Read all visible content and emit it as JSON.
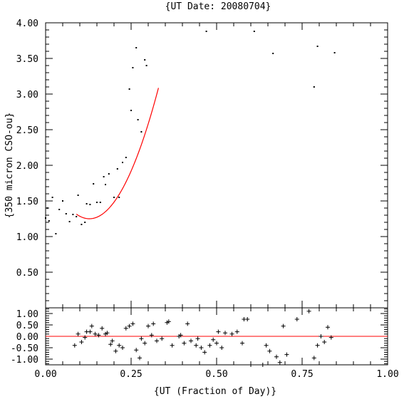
{
  "chart_data": [
    {
      "type": "scatter",
      "title": "{UT Date: 20080704}",
      "xlabel": "",
      "ylabel": "{350 micron CSO-ou}",
      "xlim": [
        0.0,
        1.0
      ],
      "ylim": [
        0.0,
        4.0
      ],
      "xticks": [
        "0.00",
        "0.25",
        "0.50",
        "0.75",
        "1.00"
      ],
      "yticks": [
        "0.50",
        "1.00",
        "1.50",
        "2.00",
        "2.50",
        "3.00",
        "3.50",
        "4.00"
      ],
      "series": [
        {
          "kind": "points",
          "color": "#000000",
          "points": [
            [
              0.0,
              1.26
            ],
            [
              0.005,
              1.4
            ],
            [
              0.01,
              1.22
            ],
            [
              0.02,
              1.55
            ],
            [
              0.03,
              1.04
            ],
            [
              0.04,
              1.38
            ],
            [
              0.05,
              1.5
            ],
            [
              0.06,
              1.32
            ],
            [
              0.07,
              1.21
            ],
            [
              0.08,
              1.31
            ],
            [
              0.09,
              1.28
            ],
            [
              0.095,
              1.58
            ],
            [
              0.105,
              1.17
            ],
            [
              0.115,
              1.2
            ],
            [
              0.12,
              1.46
            ],
            [
              0.13,
              1.45
            ],
            [
              0.14,
              1.74
            ],
            [
              0.15,
              1.48
            ],
            [
              0.16,
              1.48
            ],
            [
              0.17,
              1.84
            ],
            [
              0.175,
              1.73
            ],
            [
              0.185,
              1.88
            ],
            [
              0.2,
              1.55
            ],
            [
              0.21,
              1.95
            ],
            [
              0.215,
              1.55
            ],
            [
              0.225,
              2.04
            ],
            [
              0.235,
              2.11
            ],
            [
              0.245,
              3.07
            ],
            [
              0.25,
              2.77
            ],
            [
              0.255,
              3.37
            ],
            [
              0.265,
              3.65
            ],
            [
              0.27,
              2.64
            ],
            [
              0.28,
              2.47
            ],
            [
              0.29,
              3.48
            ],
            [
              0.295,
              3.4
            ],
            [
              0.47,
              3.88
            ],
            [
              0.61,
              3.88
            ],
            [
              0.665,
              3.57
            ],
            [
              0.785,
              3.1
            ],
            [
              0.795,
              3.67
            ],
            [
              0.845,
              3.58
            ]
          ]
        },
        {
          "kind": "fit",
          "color": "#ff0000",
          "curve": {
            "a": 45.0,
            "x0": 0.128,
            "y0": 1.25,
            "x_start": 0.09,
            "x_end": 0.33
          }
        }
      ]
    },
    {
      "type": "scatter",
      "title": "",
      "xlabel": "{UT (Fraction of Day)}",
      "ylabel": "",
      "xlim": [
        0.0,
        1.0
      ],
      "ylim": [
        -1.25,
        1.25
      ],
      "xticks": [
        "0.00",
        "0.25",
        "0.50",
        "0.75",
        "1.00"
      ],
      "yticks": [
        "1.00",
        "0.50",
        "0.00",
        "-0.50",
        "-1.00"
      ],
      "series": [
        {
          "kind": "residuals",
          "marker": "+",
          "color": "#000000",
          "points": [
            [
              0.085,
              -0.4
            ],
            [
              0.095,
              0.1
            ],
            [
              0.105,
              -0.25
            ],
            [
              0.115,
              -0.05
            ],
            [
              0.12,
              0.2
            ],
            [
              0.13,
              0.2
            ],
            [
              0.135,
              0.45
            ],
            [
              0.145,
              0.1
            ],
            [
              0.155,
              0.05
            ],
            [
              0.165,
              0.35
            ],
            [
              0.175,
              0.1
            ],
            [
              0.18,
              0.15
            ],
            [
              0.19,
              -0.35
            ],
            [
              0.195,
              -0.2
            ],
            [
              0.205,
              -0.65
            ],
            [
              0.215,
              -0.4
            ],
            [
              0.225,
              -0.5
            ],
            [
              0.235,
              0.35
            ],
            [
              0.245,
              0.45
            ],
            [
              0.255,
              0.55
            ],
            [
              0.265,
              -0.6
            ],
            [
              0.275,
              -0.95
            ],
            [
              0.28,
              -0.1
            ],
            [
              0.29,
              -0.3
            ],
            [
              0.3,
              0.45
            ],
            [
              0.31,
              0.05
            ],
            [
              0.315,
              0.55
            ],
            [
              0.325,
              -0.2
            ],
            [
              0.34,
              -0.1
            ],
            [
              0.355,
              0.6
            ],
            [
              0.36,
              0.65
            ],
            [
              0.37,
              -0.4
            ],
            [
              0.39,
              0.0
            ],
            [
              0.395,
              0.05
            ],
            [
              0.405,
              -0.3
            ],
            [
              0.415,
              0.55
            ],
            [
              0.425,
              -0.2
            ],
            [
              0.44,
              -0.4
            ],
            [
              0.445,
              -0.1
            ],
            [
              0.455,
              -0.5
            ],
            [
              0.465,
              -0.7
            ],
            [
              0.48,
              -0.4
            ],
            [
              0.49,
              -0.15
            ],
            [
              0.5,
              -0.3
            ],
            [
              0.505,
              0.2
            ],
            [
              0.515,
              -0.5
            ],
            [
              0.525,
              0.15
            ],
            [
              0.545,
              0.1
            ],
            [
              0.56,
              0.2
            ],
            [
              0.575,
              -0.3
            ],
            [
              0.58,
              0.75
            ],
            [
              0.59,
              0.75
            ],
            [
              0.6,
              -1.25
            ],
            [
              0.635,
              -1.25
            ],
            [
              0.645,
              -0.4
            ],
            [
              0.655,
              -0.65
            ],
            [
              0.675,
              -0.9
            ],
            [
              0.685,
              -1.15
            ],
            [
              0.695,
              0.45
            ],
            [
              0.705,
              -0.8
            ],
            [
              0.735,
              0.75
            ],
            [
              0.77,
              1.1
            ],
            [
              0.785,
              -0.95
            ],
            [
              0.795,
              -0.4
            ],
            [
              0.805,
              0.0
            ],
            [
              0.815,
              -0.25
            ],
            [
              0.825,
              0.4
            ],
            [
              0.835,
              -0.05
            ]
          ]
        },
        {
          "kind": "zero-line",
          "color": "#ff0000",
          "y": 0.0
        }
      ]
    }
  ]
}
